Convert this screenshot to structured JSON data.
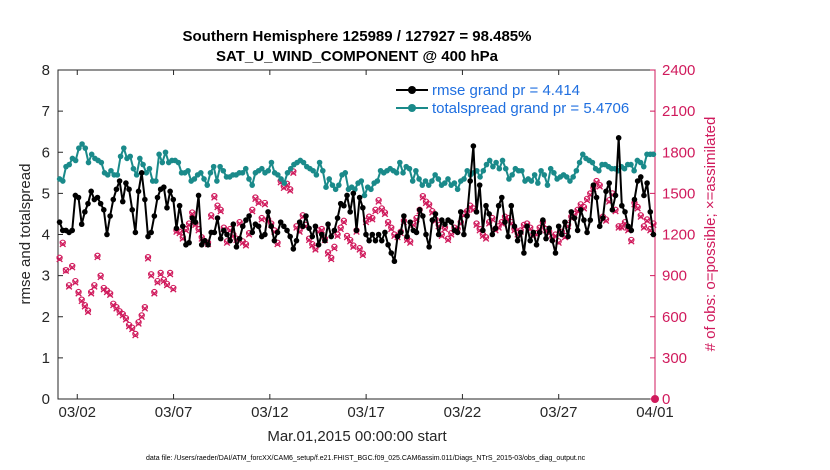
{
  "chart_data": {
    "type": "line",
    "title_line1": "Southern Hemisphere 125989 / 127927 = 98.485%",
    "title_line2": "SAT_U_WIND_COMPONENT @ 400 hPa",
    "xlabel": "Mar.01,2015 00:00:00 start",
    "ylabel_left": "rmse and totalspread",
    "ylabel_right": "# of obs: o=possible; ×=assimilated",
    "footnote": "data file: /Users/raeder/DAI/ATM_forcXX/CAM6_setup/f.e21.FHIST_BGC.f09_025.CAM6assim.011/Diags_NTrS_2015-03/obs_diag_output.nc",
    "xlim": [
      0,
      31
    ],
    "x_ticks": [
      1,
      6,
      11,
      16,
      21,
      26,
      31
    ],
    "x_tick_labels": [
      "03/02",
      "03/07",
      "03/12",
      "03/17",
      "03/22",
      "03/27",
      "04/01"
    ],
    "ylim_left": [
      0,
      8
    ],
    "y_ticks_left": [
      "0",
      "1",
      "2",
      "3",
      "4",
      "5",
      "6",
      "7",
      "8"
    ],
    "ylim_right": [
      0,
      2400
    ],
    "y_ticks_right": [
      "0",
      "300",
      "600",
      "900",
      "1200",
      "1500",
      "1800",
      "2100",
      "2400"
    ],
    "legend": [
      {
        "name": "rmse grand pr = 4.414",
        "color": "#000000"
      },
      {
        "name": "totalspread grand pr = 5.4706",
        "color": "#1a8a8a"
      }
    ],
    "colors": {
      "rmse": "#000000",
      "spread": "#1a8a8a",
      "obs": "#d01a5c",
      "text_blue": "#1f6fe0"
    },
    "series": [
      {
        "name": "rmse",
        "values": [
          4.3,
          4.1,
          4.1,
          4.05,
          4.1,
          4.95,
          4.9,
          4.25,
          4.55,
          4.75,
          5.05,
          4.85,
          4.9,
          4.75,
          4.6,
          4.0,
          4.45,
          4.85,
          5.1,
          5.3,
          4.8,
          5.25,
          5.1,
          4.6,
          4.05,
          5.05,
          5.5,
          4.85,
          3.95,
          4.05,
          4.45,
          4.9,
          5.1,
          5.15,
          4.65,
          5.05,
          4.85,
          4.15,
          4.7,
          4.2,
          3.75,
          3.8,
          4.4,
          4.3,
          4.95,
          3.75,
          3.85,
          3.75,
          4.05,
          4.05,
          4.4,
          3.9,
          4.1,
          4.0,
          3.85,
          4.25,
          3.7,
          3.9,
          4.2,
          4.35,
          4.45,
          4.05,
          4.25,
          4.2,
          3.95,
          4.0,
          4.55,
          4.2,
          3.85,
          4.05,
          4.3,
          4.2,
          4.1,
          3.95,
          3.65,
          3.85,
          4.3,
          4.2,
          4.45,
          4.15,
          3.95,
          4.2,
          3.75,
          4.0,
          3.85,
          4.25,
          3.95,
          4.1,
          4.4,
          4.75,
          4.7,
          4.95,
          4.55,
          5.0,
          4.1,
          4.9,
          4.65,
          4.0,
          3.85,
          4.0,
          3.85,
          4.0,
          3.85,
          4.05,
          3.75,
          3.55,
          3.35,
          3.95,
          4.05,
          4.45,
          3.95,
          4.3,
          4.1,
          4.05,
          4.6,
          4.45,
          4.0,
          3.7,
          4.35,
          4.5,
          4.0,
          4.35,
          4.25,
          4.35,
          4.3,
          4.1,
          4.05,
          4.55,
          4.0,
          4.45,
          5.3,
          6.15,
          4.55,
          5.2,
          4.1,
          4.7,
          4.5,
          4.0,
          4.15,
          4.7,
          4.9,
          4.3,
          3.95,
          4.7,
          4.2,
          3.85,
          4.05,
          3.55,
          4.2,
          3.85,
          4.05,
          3.75,
          4.05,
          4.35,
          3.9,
          4.15,
          3.85,
          3.55,
          4.2,
          4.0,
          4.3,
          3.95,
          4.55,
          4.4,
          4.1,
          4.6,
          4.35,
          4.05,
          4.35,
          5.2,
          4.9,
          4.2,
          4.4,
          5.05,
          5.25,
          4.6,
          4.95,
          6.35,
          4.7,
          4.55,
          4.2,
          4.1,
          4.85,
          5.3,
          5.4,
          4.95,
          5.25,
          4.55,
          4.0
        ]
      },
      {
        "name": "totalspread",
        "values": [
          5.35,
          5.3,
          5.65,
          5.7,
          5.85,
          5.8,
          6.1,
          6.2,
          6.1,
          5.75,
          5.95,
          5.85,
          5.8,
          5.75,
          5.5,
          5.45,
          5.55,
          5.45,
          5.45,
          5.9,
          6.1,
          5.85,
          5.9,
          5.6,
          5.45,
          5.85,
          5.7,
          5.5,
          5.6,
          5.3,
          5.3,
          5.95,
          5.75,
          6.0,
          5.75,
          5.8,
          5.8,
          5.75,
          5.5,
          5.5,
          5.55,
          5.3,
          5.35,
          5.45,
          5.5,
          5.35,
          5.2,
          5.5,
          5.65,
          5.3,
          5.65,
          5.55,
          5.4,
          5.4,
          5.45,
          5.45,
          5.5,
          5.5,
          5.6,
          5.35,
          5.2,
          5.5,
          5.55,
          5.6,
          5.5,
          5.55,
          5.75,
          5.5,
          5.45,
          5.35,
          5.25,
          5.5,
          5.6,
          5.7,
          5.75,
          5.8,
          5.75,
          5.65,
          5.6,
          5.55,
          5.45,
          5.75,
          5.55,
          5.15,
          5.35,
          5.2,
          5.1,
          5.2,
          5.45,
          5.5,
          5.1,
          5.15,
          5.1,
          5.25,
          5.3,
          4.95,
          5.15,
          5.1,
          5.25,
          5.3,
          5.55,
          5.5,
          5.55,
          5.6,
          5.55,
          5.5,
          5.75,
          5.5,
          5.65,
          5.6,
          5.3,
          5.55,
          5.35,
          5.2,
          5.3,
          5.2,
          5.3,
          5.45,
          5.35,
          5.2,
          5.25,
          5.35,
          5.2,
          5.25,
          5.1,
          5.3,
          5.35,
          5.55,
          5.45,
          5.5,
          5.55,
          5.4,
          5.55,
          5.7,
          5.8,
          5.65,
          5.75,
          5.6,
          5.8,
          5.6,
          5.35,
          5.45,
          5.6,
          5.55,
          5.55,
          5.3,
          5.35,
          5.3,
          5.45,
          5.25,
          5.55,
          5.45,
          5.2,
          5.6,
          5.5,
          5.35,
          5.4,
          5.45,
          5.4,
          5.3,
          5.4,
          5.55,
          5.75,
          5.95,
          5.85,
          5.8,
          5.75,
          5.6,
          5.55,
          5.7,
          5.7,
          5.65,
          5.6,
          5.6,
          5.55,
          5.65,
          5.6,
          5.7,
          5.7,
          5.55,
          5.8,
          5.75,
          5.65,
          5.95,
          5.95,
          5.95
        ]
      },
      {
        "name": "obs_possible",
        "values": [
          1030,
          1140,
          940,
          830,
          970,
          860,
          780,
          725,
          685,
          645,
          780,
          830,
          1045,
          900,
          810,
          790,
          770,
          695,
          670,
          640,
          620,
          590,
          540,
          520,
          475,
          560,
          610,
          670,
          1035,
          910,
          780,
          860,
          920,
          870,
          840,
          920,
          810,
          1230,
          1220,
          1180,
          1240,
          1280,
          1360,
          1280,
          1240,
          1180,
          1150,
          1140,
          1340,
          1480,
          1410,
          1380,
          1250,
          1150,
          1240,
          1200,
          1170,
          1290,
          1150,
          1130,
          1210,
          1380,
          1470,
          1440,
          1320,
          1430,
          1310,
          1280,
          1230,
          1140,
          1590,
          1550,
          1570,
          1530,
          1660,
          1260,
          1230,
          1340,
          1270,
          1170,
          1130,
          1100,
          1230,
          1240,
          1170,
          1070,
          1030,
          1110,
          1200,
          1250,
          1300,
          1190,
          1160,
          1120,
          1230,
          1100,
          1060,
          1300,
          1330,
          1320,
          1380,
          1450,
          1390,
          1360,
          1290,
          1250,
          1200,
          1190,
          1220,
          1300,
          1170,
          1150,
          1280,
          1320,
          1380,
          1480,
          1440,
          1420,
          1370,
          1310,
          1270,
          1200,
          1250,
          1170,
          1210,
          1250,
          1240,
          1290,
          1350,
          1370,
          1410,
          1390,
          1280,
          1240,
          1200,
          1180,
          1290,
          1320,
          1240,
          1260,
          1290,
          1330,
          1320,
          1290,
          1240,
          1210,
          1230,
          1270,
          1280,
          1250,
          1200,
          1210,
          1250,
          1290,
          1240,
          1220,
          1180,
          1200,
          1150,
          1220,
          1190,
          1270,
          1330,
          1350,
          1380,
          1420,
          1400,
          1460,
          1500,
          1540,
          1590,
          1560,
          1330,
          1310,
          1450,
          1500,
          1380,
          1260,
          1260,
          1290,
          1240,
          1160,
          1430,
          1400,
          1340,
          1260,
          1310,
          1240,
          1280
        ]
      },
      {
        "name": "obs_assimilated",
        "values": [
          1020,
          1130,
          935,
          820,
          960,
          850,
          770,
          715,
          675,
          635,
          770,
          820,
          1035,
          890,
          800,
          780,
          760,
          685,
          660,
          630,
          610,
          580,
          530,
          510,
          465,
          550,
          600,
          660,
          1025,
          900,
          770,
          850,
          910,
          860,
          830,
          910,
          800,
          1220,
          1210,
          1170,
          1230,
          1270,
          1350,
          1270,
          1230,
          1170,
          1140,
          1130,
          1330,
          1470,
          1400,
          1370,
          1240,
          1140,
          1230,
          1190,
          1160,
          1280,
          1140,
          1120,
          1200,
          1370,
          1460,
          1430,
          1310,
          1420,
          1300,
          1270,
          1220,
          1130,
          1580,
          1540,
          1560,
          1520,
          1650,
          1250,
          1220,
          1330,
          1260,
          1160,
          1120,
          1090,
          1220,
          1230,
          1160,
          1060,
          1020,
          1100,
          1190,
          1240,
          1290,
          1180,
          1150,
          1110,
          1220,
          1090,
          1050,
          1290,
          1320,
          1310,
          1370,
          1440,
          1380,
          1350,
          1280,
          1240,
          1190,
          1180,
          1210,
          1290,
          1160,
          1140,
          1270,
          1310,
          1370,
          1470,
          1430,
          1410,
          1360,
          1300,
          1260,
          1190,
          1240,
          1160,
          1200,
          1240,
          1230,
          1280,
          1340,
          1360,
          1400,
          1380,
          1270,
          1230,
          1190,
          1170,
          1280,
          1310,
          1230,
          1250,
          1280,
          1320,
          1310,
          1280,
          1230,
          1200,
          1220,
          1260,
          1270,
          1240,
          1190,
          1200,
          1240,
          1280,
          1230,
          1210,
          1170,
          1190,
          1140,
          1210,
          1180,
          1260,
          1320,
          1340,
          1370,
          1410,
          1390,
          1450,
          1490,
          1530,
          1580,
          1550,
          1320,
          1300,
          1440,
          1490,
          1370,
          1250,
          1250,
          1280,
          1230,
          1150,
          1420,
          1390,
          1330,
          1250,
          1300,
          1230,
          1270
        ]
      }
    ]
  }
}
